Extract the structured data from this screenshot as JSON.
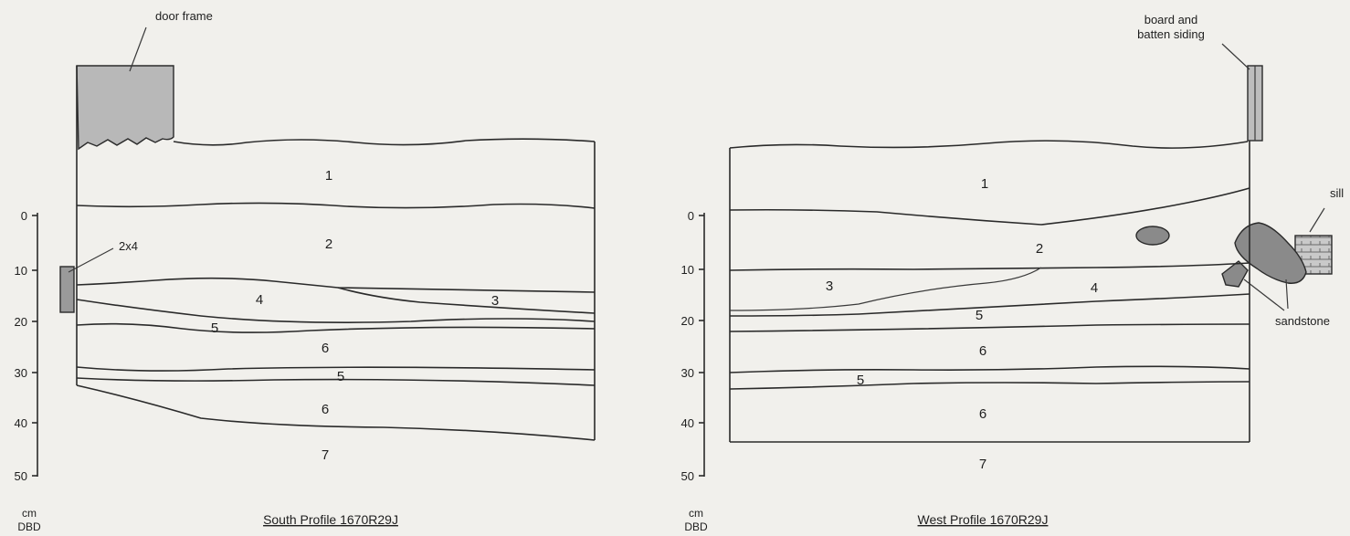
{
  "scale": {
    "ticks": [
      "0",
      "10",
      "20",
      "30",
      "40",
      "50"
    ],
    "unit_line1": "cm",
    "unit_line2": "DBD"
  },
  "south_profile": {
    "title": "South Profile 1670R29J",
    "annotations": {
      "door_frame": "door frame",
      "two_by_four": "2x4"
    },
    "layers": [
      "1",
      "2",
      "3",
      "4",
      "5",
      "6",
      "5",
      "6",
      "7"
    ]
  },
  "west_profile": {
    "title": "West Profile 1670R29J",
    "annotations": {
      "siding_line1": "board and",
      "siding_line2": "batten siding",
      "sill": "sill",
      "sandstone": "sandstone"
    },
    "layers": [
      "1",
      "2",
      "3",
      "4",
      "5",
      "6",
      "5",
      "6",
      "7"
    ]
  },
  "colors": {
    "background": "#f1f0ec",
    "line": "#2a2a2a",
    "rock_fill": "#8a8a8a",
    "frame_fill": "#b8b8b8"
  }
}
